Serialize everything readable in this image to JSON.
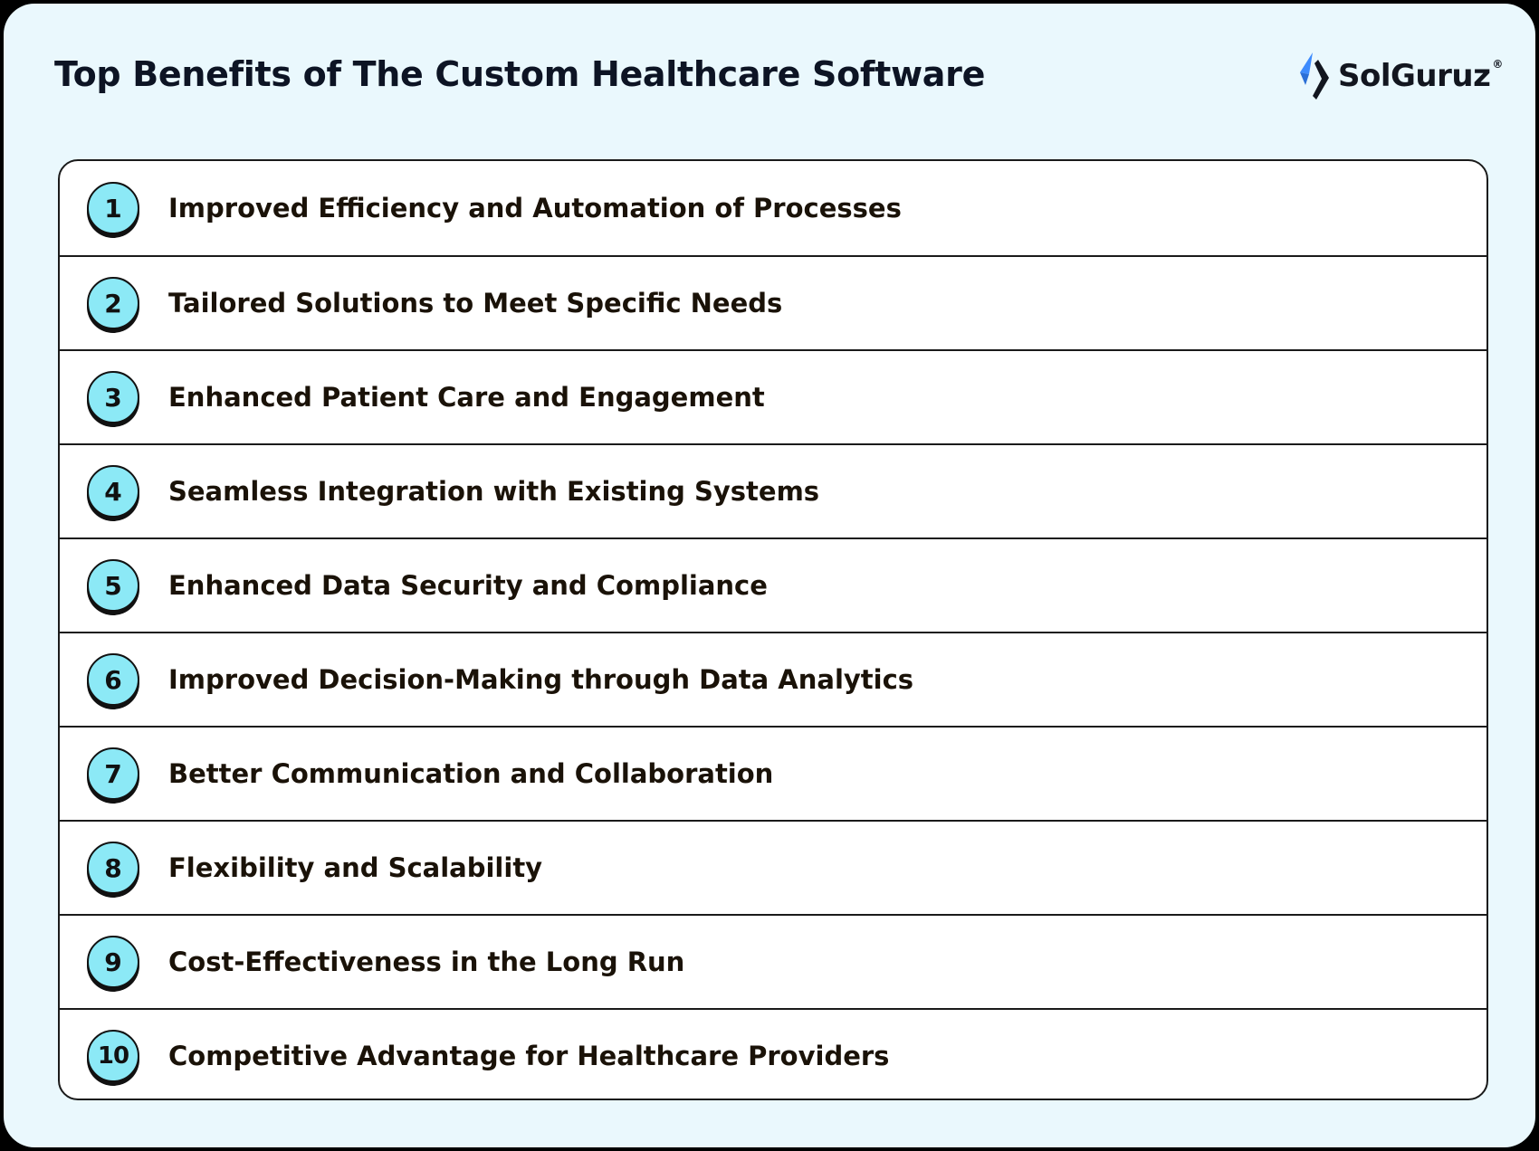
{
  "title": "Top Benefits of The Custom Healthcare Software",
  "brand": {
    "name": "SolGuruz",
    "registered_mark": "®",
    "colors": {
      "accent": "#3d8bfd",
      "dark": "#12161f"
    }
  },
  "theme": {
    "background": "#eaf8fd",
    "badge_fill": "#8ce9f6",
    "outline": "#1a1a1a"
  },
  "benefits": [
    {
      "number": "1",
      "label": "Improved Efficiency and Automation of Processes"
    },
    {
      "number": "2",
      "label": "Tailored Solutions to Meet Specific Needs"
    },
    {
      "number": "3",
      "label": "Enhanced Patient Care and Engagement"
    },
    {
      "number": "4",
      "label": "Seamless Integration with Existing Systems"
    },
    {
      "number": "5",
      "label": "Enhanced Data Security and Compliance"
    },
    {
      "number": "6",
      "label": "Improved Decision-Making through Data Analytics"
    },
    {
      "number": "7",
      "label": "Better Communication and Collaboration"
    },
    {
      "number": "8",
      "label": "Flexibility and Scalability"
    },
    {
      "number": "9",
      "label": "Cost-Effectiveness in the Long Run"
    },
    {
      "number": "10",
      "label": "Competitive Advantage for Healthcare Providers"
    }
  ]
}
